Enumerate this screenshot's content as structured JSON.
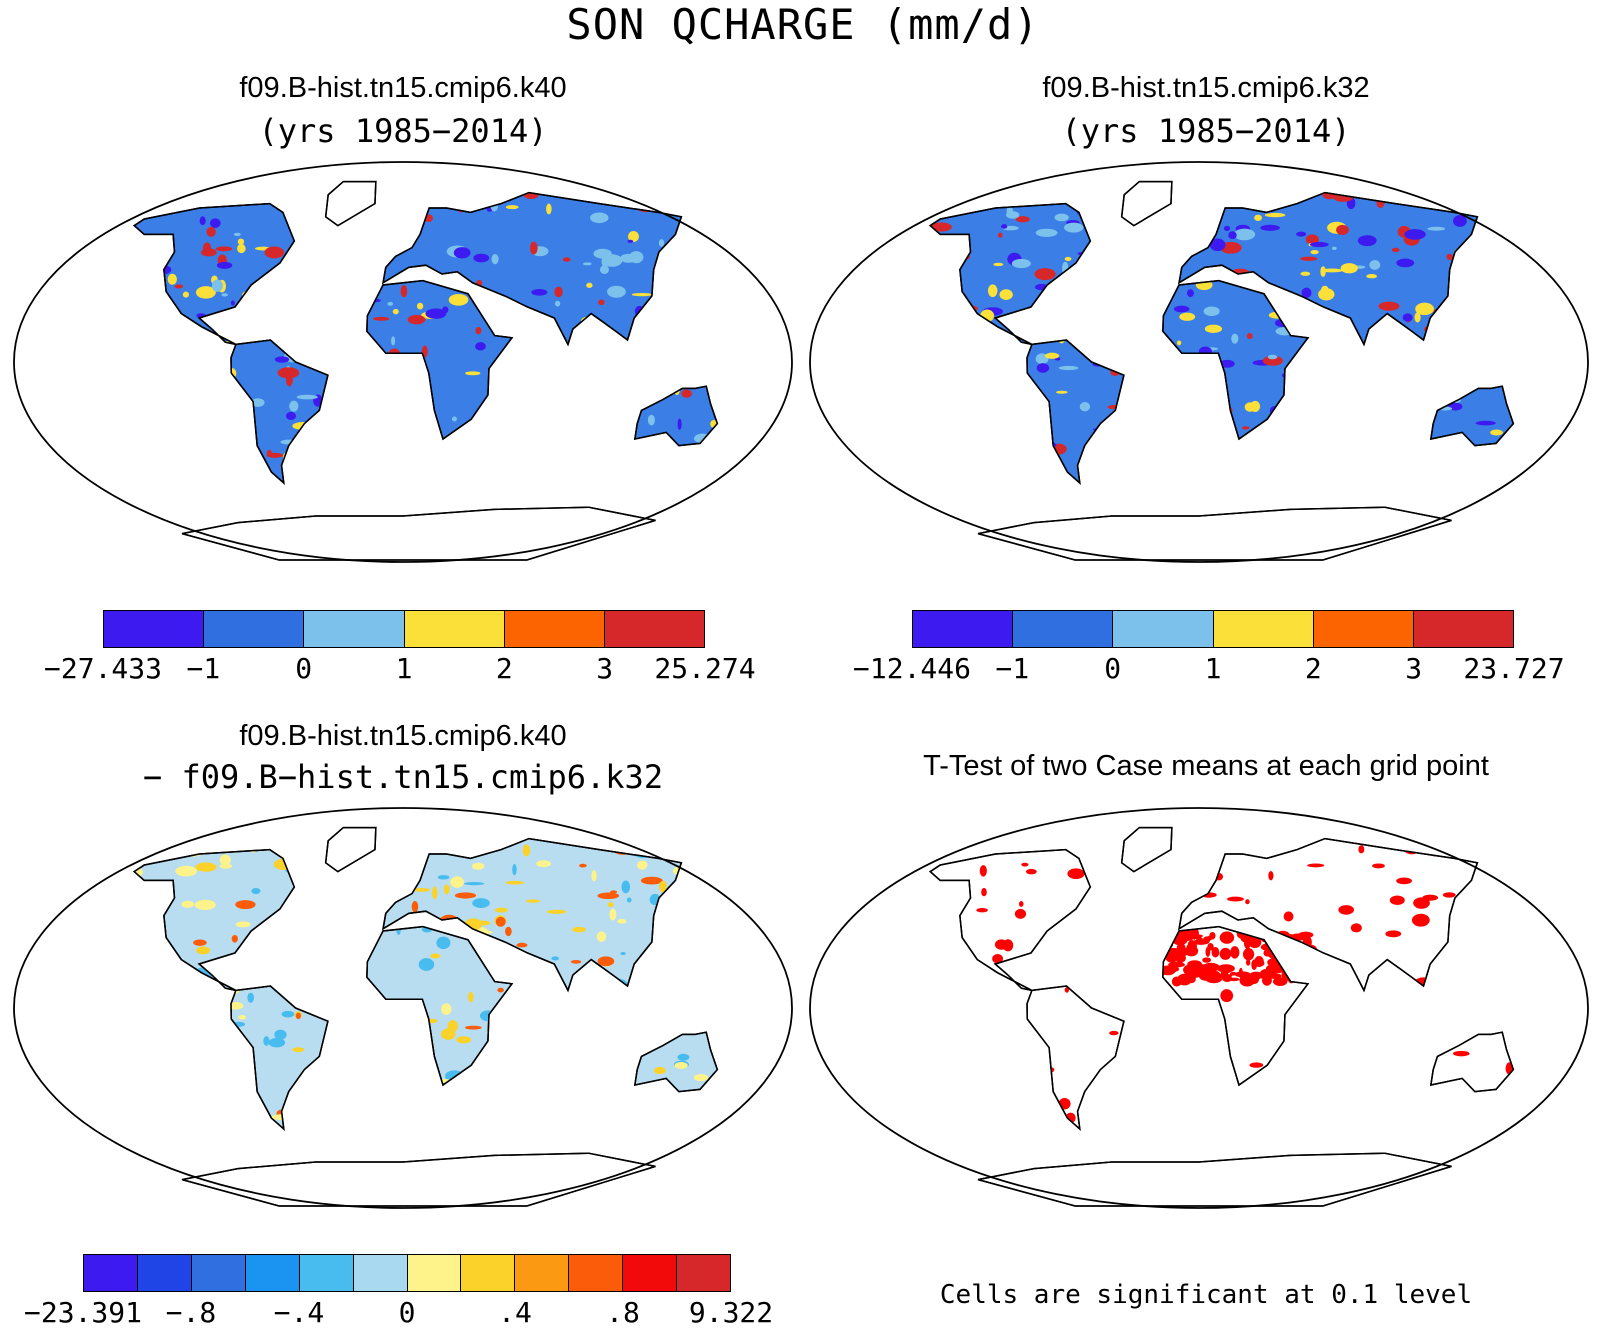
{
  "title": "SON QCHARGE (mm/d)",
  "panels": {
    "top_left": {
      "case": "f09.B-hist.tn15.cmip6.k40",
      "years": "(yrs 1985−2014)",
      "colorbar": {
        "colors": [
          "#3c1af0",
          "#2f6fe0",
          "#7cc1ec",
          "#fbe03a",
          "#fb6400",
          "#d6282b"
        ],
        "labels": [
          "−27.433",
          "−1",
          "0",
          "1",
          "2",
          "3",
          "25.274"
        ]
      }
    },
    "top_right": {
      "case": "f09.B-hist.tn15.cmip6.k32",
      "years": "(yrs 1985−2014)",
      "colorbar": {
        "colors": [
          "#3c1af0",
          "#2f6fe0",
          "#7cc1ec",
          "#fbe03a",
          "#fb6400",
          "#d6282b"
        ],
        "labels": [
          "−12.446",
          "−1",
          "0",
          "1",
          "2",
          "3",
          "23.727"
        ]
      }
    },
    "bottom_left": {
      "case": "f09.B-hist.tn15.cmip6.k40",
      "minus_case": "− f09.B−hist.tn15.cmip6.k32",
      "colorbar": {
        "colors": [
          "#3c1af0",
          "#1f45e6",
          "#2f6fe0",
          "#1b93f0",
          "#48bcef",
          "#a8d9f0",
          "#fdf38a",
          "#fbd229",
          "#fb9a12",
          "#fb5c0a",
          "#f20a0a",
          "#d6282b"
        ],
        "labels": [
          "−23.391",
          "−.8",
          "−.4",
          "0",
          ".4",
          ".8",
          "9.322"
        ]
      }
    },
    "bottom_right": {
      "title": "T-Test of two Case means at each grid point",
      "note": "Cells are significant at 0.1 level",
      "significance_color": "#ff0000"
    }
  }
}
